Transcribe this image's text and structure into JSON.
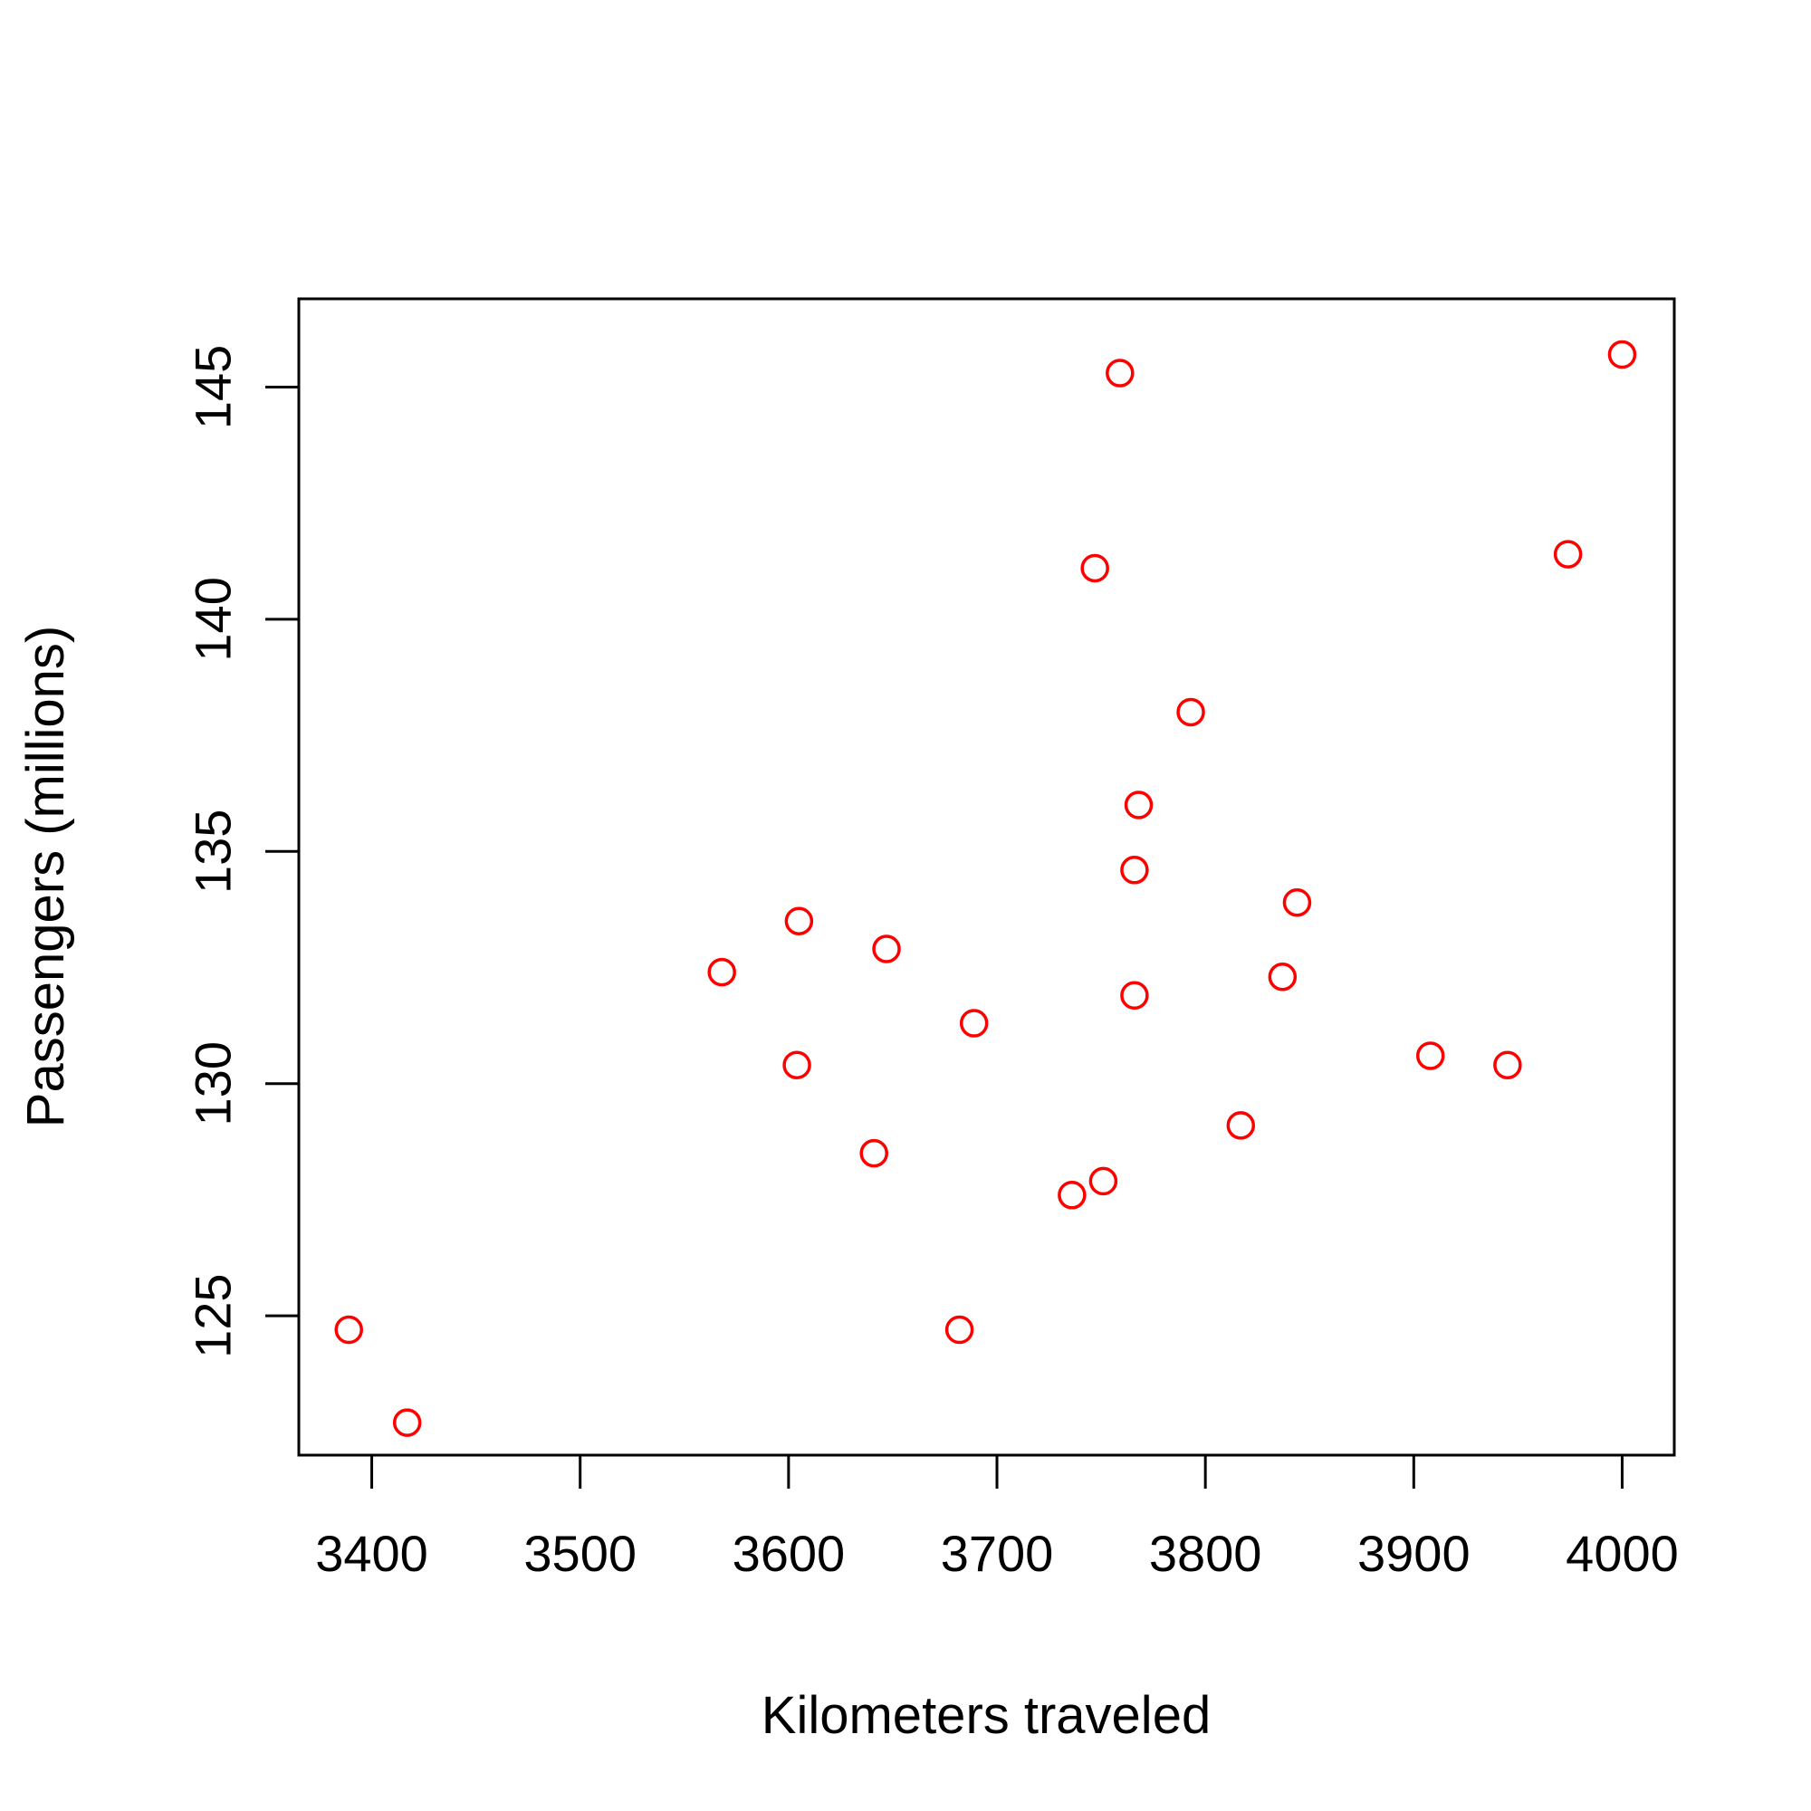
{
  "chart_data": {
    "type": "scatter",
    "title": "",
    "xlabel": "Kilometers traveled",
    "ylabel": "Passengers (millions)",
    "xlim": [
      3365,
      4025
    ],
    "ylim": [
      122.0,
      146.9
    ],
    "xticks": [
      3400,
      3500,
      3600,
      3700,
      3800,
      3900,
      4000
    ],
    "yticks": [
      125,
      130,
      135,
      140,
      145
    ],
    "grid": false,
    "legend": "none",
    "point_color": "#ff0000",
    "marker": "open-circle",
    "points": [
      {
        "x": 3389,
        "y": 124.7
      },
      {
        "x": 3417,
        "y": 122.7
      },
      {
        "x": 3568,
        "y": 132.4
      },
      {
        "x": 3605,
        "y": 133.5
      },
      {
        "x": 3604,
        "y": 130.4
      },
      {
        "x": 3641,
        "y": 128.5
      },
      {
        "x": 3647,
        "y": 132.9
      },
      {
        "x": 3682,
        "y": 124.7
      },
      {
        "x": 3689,
        "y": 131.3
      },
      {
        "x": 3736,
        "y": 127.6
      },
      {
        "x": 3751,
        "y": 127.9
      },
      {
        "x": 3747,
        "y": 141.1
      },
      {
        "x": 3759,
        "y": 145.3
      },
      {
        "x": 3766,
        "y": 134.6
      },
      {
        "x": 3766,
        "y": 131.9
      },
      {
        "x": 3768,
        "y": 136.0
      },
      {
        "x": 3793,
        "y": 138.0
      },
      {
        "x": 3817,
        "y": 129.1
      },
      {
        "x": 3837,
        "y": 132.3
      },
      {
        "x": 3844,
        "y": 133.9
      },
      {
        "x": 3908,
        "y": 130.6
      },
      {
        "x": 3945,
        "y": 130.4
      },
      {
        "x": 3974,
        "y": 141.4
      },
      {
        "x": 4000,
        "y": 145.7
      }
    ]
  }
}
